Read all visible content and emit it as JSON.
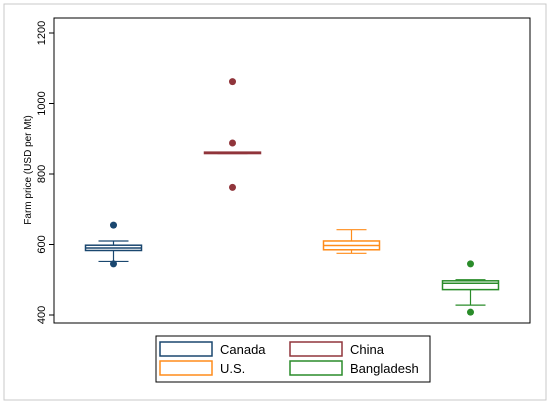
{
  "chart_data": {
    "type": "box",
    "title": "",
    "xlabel": "",
    "ylabel": "Farm price (USD per Mt)",
    "ylim": [
      380,
      1220
    ],
    "yticks": [
      "400",
      "600",
      "800",
      "1000",
      "1200"
    ],
    "ytick_values": [
      400,
      600,
      800,
      1000,
      1200
    ],
    "grid": false,
    "legend": {
      "position": "bottom",
      "columns": 2,
      "entries": [
        "Canada",
        "China",
        "U.S.",
        "Bangladesh"
      ]
    },
    "series": [
      {
        "name": "Canada",
        "color": "#1a476f",
        "whisker_low": 552,
        "q1": 583,
        "median": 590,
        "q3": 598,
        "whisker_high": 610,
        "outliers": [
          545,
          655
        ]
      },
      {
        "name": "China",
        "color": "#90353b",
        "whisker_low": 858,
        "q1": 858,
        "median": 860,
        "q3": 862,
        "whisker_high": 862,
        "outliers": [
          762,
          888,
          1062
        ]
      },
      {
        "name": "U.S.",
        "color": "#ff8c1a",
        "whisker_low": 575,
        "q1": 585,
        "median": 597,
        "q3": 610,
        "whisker_high": 642,
        "outliers": []
      },
      {
        "name": "Bangladesh",
        "color": "#2a8c2a",
        "whisker_low": 428,
        "q1": 472,
        "median": 490,
        "q3": 497,
        "whisker_high": 500,
        "outliers": [
          408,
          545
        ]
      }
    ]
  }
}
